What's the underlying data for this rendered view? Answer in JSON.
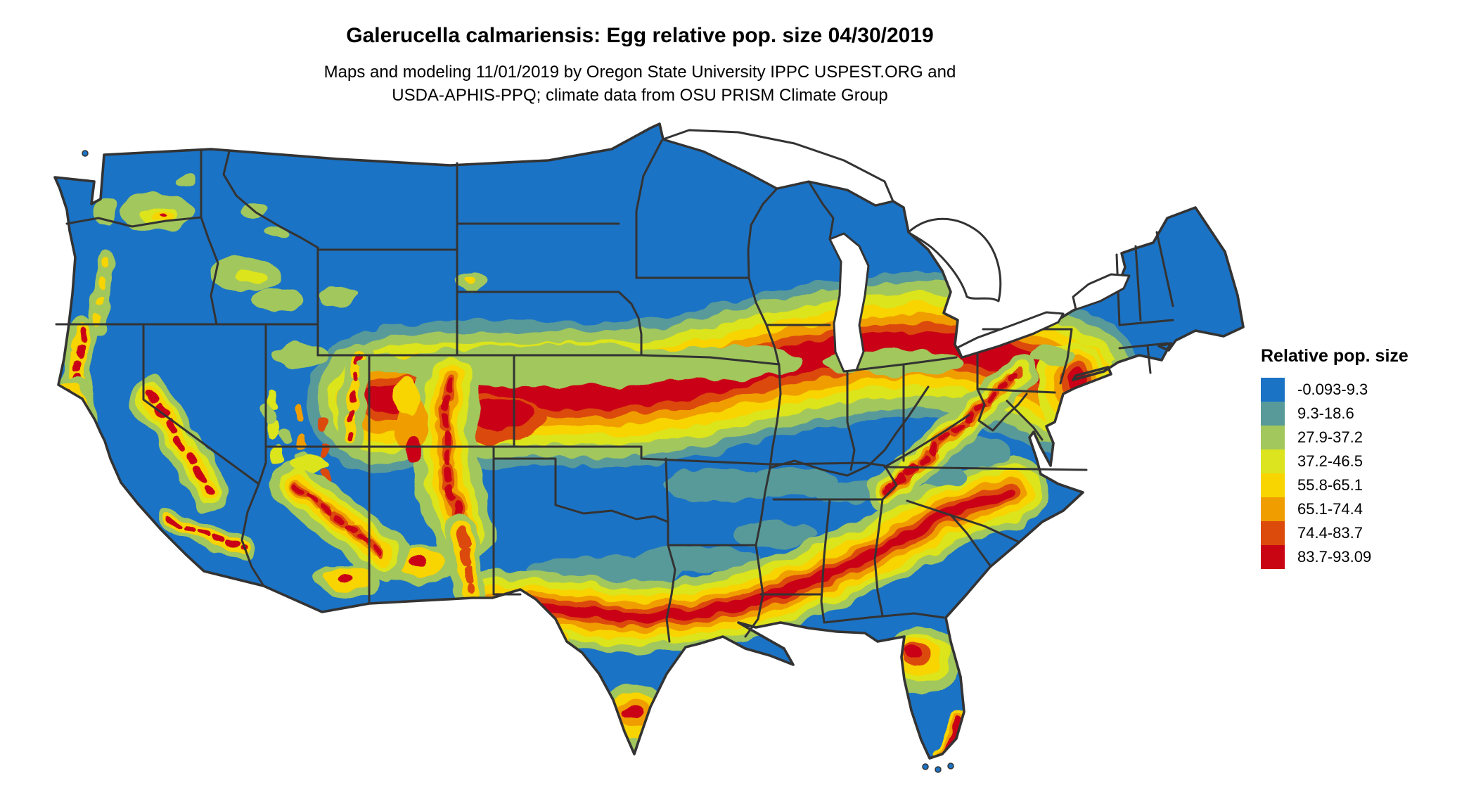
{
  "title": "Galerucella calmariensis: Egg relative pop. size 04/30/2019",
  "subtitle_line1": "Maps and modeling 11/01/2019 by Oregon State University IPPC USPEST.ORG and",
  "subtitle_line2": "USDA-APHIS-PPQ; climate data from OSU PRISM Climate Group",
  "legend": {
    "title": "Relative pop. size",
    "items": [
      {
        "label": "-0.093-9.3",
        "color": "#1b73c5"
      },
      {
        "label": "9.3-18.6",
        "color": "#589a99"
      },
      {
        "label": "27.9-37.2",
        "color": "#a2c75c"
      },
      {
        "label": "37.2-46.5",
        "color": "#dce41f"
      },
      {
        "label": "55.8-65.1",
        "color": "#f8d400"
      },
      {
        "label": "65.1-74.4",
        "color": "#f09d00"
      },
      {
        "label": "74.4-83.7",
        "color": "#dc4a0c"
      },
      {
        "label": "83.7-93.09",
        "color": "#c90513"
      }
    ]
  },
  "map": {
    "region": "Continental United States",
    "base_land_color": "#1b73c5",
    "water_color": "#ffffff",
    "boundary_color": "#333333"
  }
}
